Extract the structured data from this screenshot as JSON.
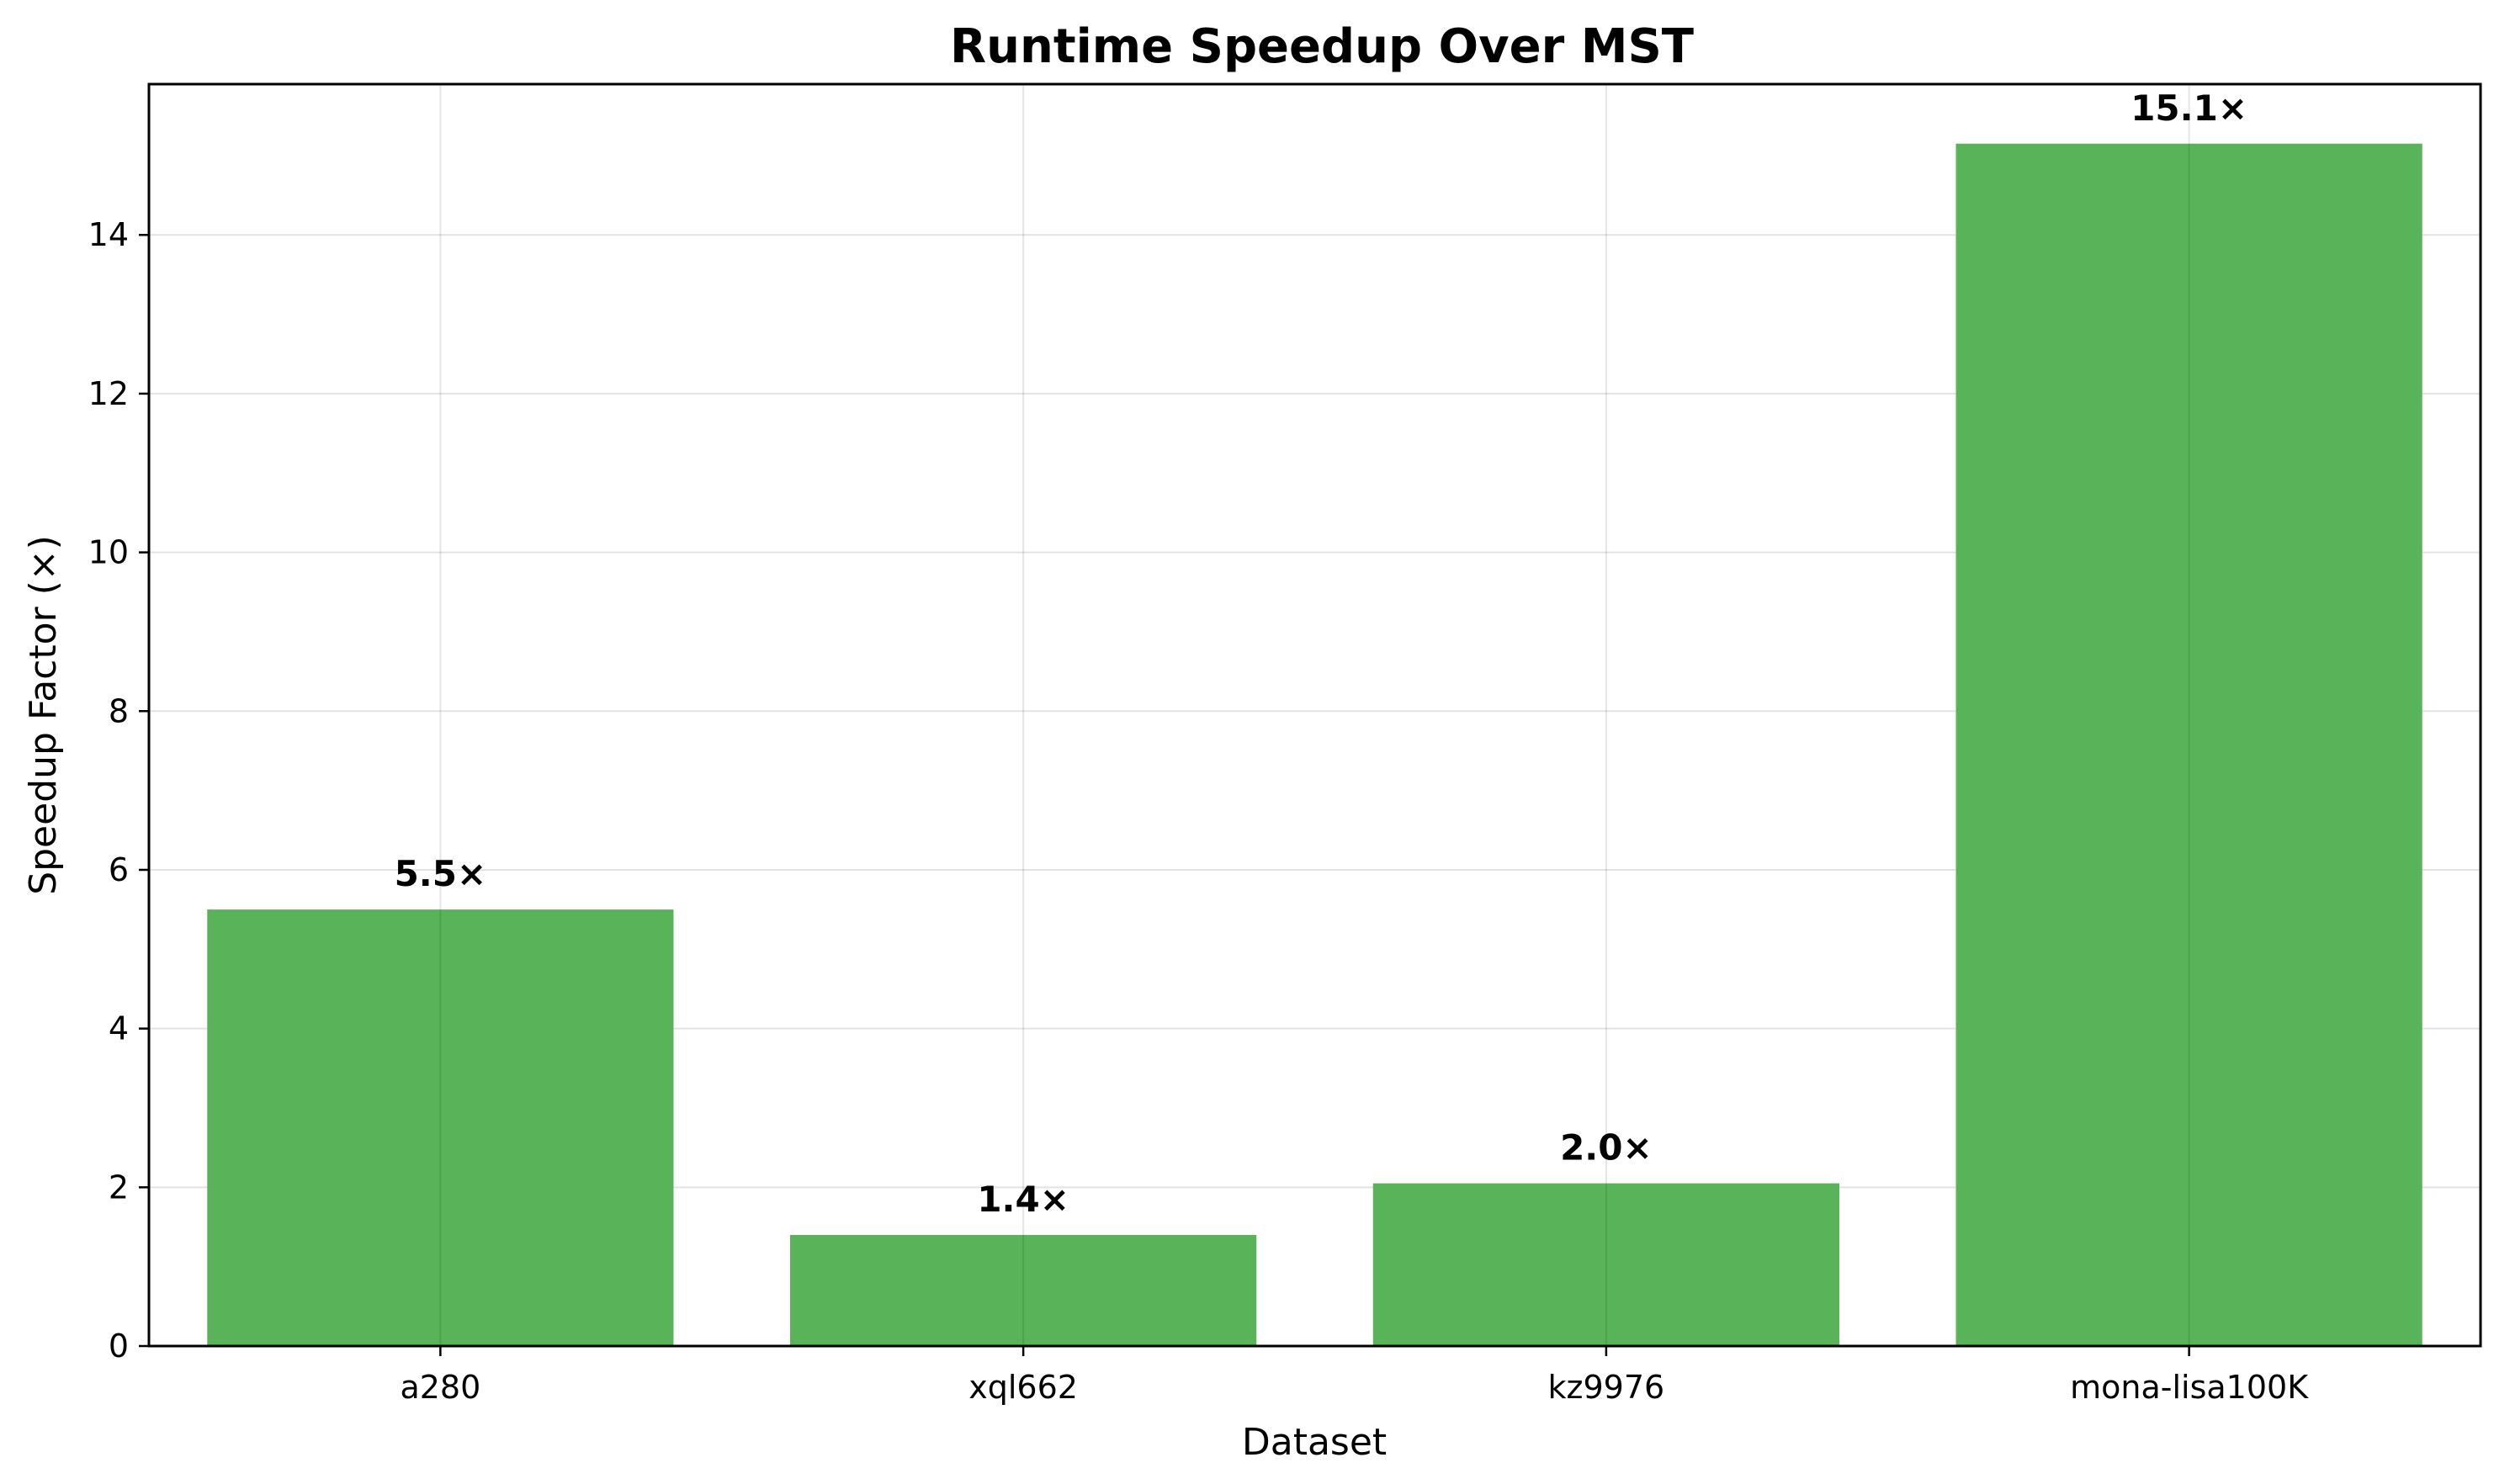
{
  "chart_data": {
    "type": "bar",
    "title": "Runtime Speedup Over MST",
    "xlabel": "Dataset",
    "ylabel": "Speedup Factor (×)",
    "categories": [
      "a280",
      "xql662",
      "kz9976",
      "mona-lisa100K"
    ],
    "values": [
      5.5,
      1.4,
      2.05,
      15.15
    ],
    "data_labels": [
      "5.5×",
      "1.4×",
      "2.0×",
      "15.1×"
    ],
    "ylim": [
      0,
      15.9
    ],
    "yticks": [
      0,
      2,
      4,
      6,
      8,
      10,
      12,
      14
    ],
    "grid": true,
    "legend": "none",
    "bar_color": "#59b359"
  }
}
